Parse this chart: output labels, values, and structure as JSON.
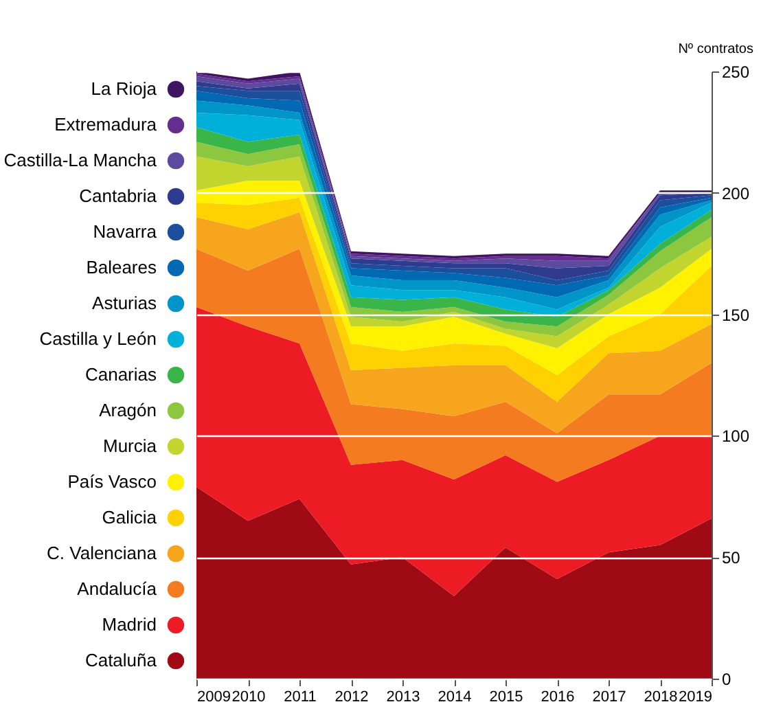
{
  "chart_data": {
    "type": "area",
    "ylabel": "Nº contratos",
    "stacked": true,
    "grid": "y",
    "legend": "left",
    "x": [
      2009,
      2010,
      2011,
      2012,
      2013,
      2014,
      2015,
      2016,
      2017,
      2018,
      2019
    ],
    "xlim": [
      2009,
      2019
    ],
    "xticks": [
      2009,
      2010,
      2011,
      2012,
      2013,
      2014,
      2015,
      2016,
      2017,
      2018,
      2019
    ],
    "ylim": [
      0,
      250
    ],
    "yticks": [
      0,
      50,
      100,
      150,
      200,
      250
    ],
    "series": [
      {
        "name": "Cataluña",
        "color": "#a00a14",
        "values": [
          79,
          65,
          74,
          47,
          50,
          34,
          54,
          41,
          52,
          55,
          66
        ]
      },
      {
        "name": "Madrid",
        "color": "#ed1c24",
        "values": [
          74,
          80,
          64,
          41,
          40,
          48,
          38,
          40,
          38,
          45,
          34
        ]
      },
      {
        "name": "Andalucía",
        "color": "#f47b20",
        "values": [
          24,
          23,
          39,
          25,
          21,
          26,
          22,
          20,
          27,
          17,
          30
        ]
      },
      {
        "name": "C. Valenciana",
        "color": "#f7a51c",
        "values": [
          13,
          17,
          15,
          14,
          17,
          21,
          15,
          13,
          17,
          18,
          16
        ]
      },
      {
        "name": "Galicia",
        "color": "#ffd100",
        "values": [
          6,
          10,
          6,
          11,
          7,
          9,
          8,
          11,
          7,
          15,
          24
        ]
      },
      {
        "name": "País Vasco",
        "color": "#fff200",
        "values": [
          5,
          10,
          7,
          7,
          10,
          11,
          5,
          11,
          9,
          11,
          7
        ]
      },
      {
        "name": "Murcia",
        "color": "#c2d52f",
        "values": [
          14,
          6,
          10,
          4,
          2,
          2,
          2,
          5,
          4,
          8,
          5
        ]
      },
      {
        "name": "Aragón",
        "color": "#8dc63f",
        "values": [
          6,
          5,
          5,
          4,
          4,
          2,
          3,
          4,
          4,
          7,
          8
        ]
      },
      {
        "name": "Canarias",
        "color": "#39b54a",
        "values": [
          6,
          5,
          4,
          4,
          5,
          4,
          5,
          4,
          2,
          3,
          3
        ]
      },
      {
        "name": "Castilla y León",
        "color": "#00b0d8",
        "values": [
          6,
          11,
          6,
          5,
          4,
          3,
          5,
          3,
          1,
          7,
          3
        ]
      },
      {
        "name": "Asturias",
        "color": "#0095c8",
        "values": [
          5,
          4,
          3,
          4,
          4,
          4,
          4,
          5,
          3,
          5,
          1
        ]
      },
      {
        "name": "Baleares",
        "color": "#0069b4",
        "values": [
          4,
          3,
          5,
          3,
          4,
          3,
          4,
          5,
          2,
          3,
          1
        ]
      },
      {
        "name": "Navarra",
        "color": "#1b4f9c",
        "values": [
          2,
          3,
          4,
          2,
          2,
          2,
          4,
          2,
          2,
          3,
          1
        ]
      },
      {
        "name": "Cantabria",
        "color": "#2e3b8f",
        "values": [
          2,
          1,
          3,
          2,
          2,
          2,
          2,
          5,
          2,
          2,
          1
        ]
      },
      {
        "name": "Castilla-La Mancha",
        "color": "#5b4a9e",
        "values": [
          2,
          2,
          2,
          1,
          1,
          1,
          2,
          3,
          2,
          1,
          0
        ]
      },
      {
        "name": "Extremadura",
        "color": "#662d91",
        "values": [
          1,
          1,
          1,
          1,
          1,
          1,
          1,
          2,
          1,
          0,
          0
        ]
      },
      {
        "name": "La Rioja",
        "color": "#3f1561",
        "values": [
          1,
          1,
          2,
          1,
          1,
          1,
          1,
          1,
          1,
          1,
          1
        ]
      }
    ]
  }
}
